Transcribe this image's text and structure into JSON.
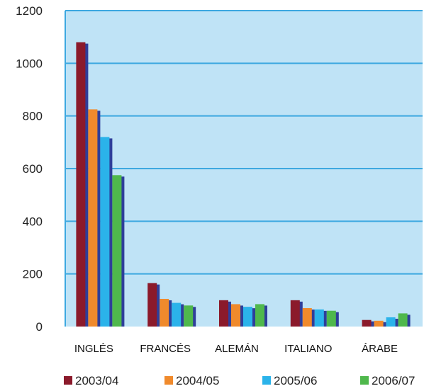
{
  "chart_data": {
    "type": "bar",
    "title": "",
    "xlabel": "",
    "ylabel": "",
    "ylim": [
      0,
      1200
    ],
    "yticks": [
      0,
      200,
      400,
      600,
      800,
      1000,
      1200
    ],
    "grid": true,
    "legend_position": "bottom",
    "categories": [
      "INGLÉS",
      "FRANCÉS",
      "ALEMÁN",
      "ITALIANO",
      "ÁRABE"
    ],
    "series": [
      {
        "name": "2003/04",
        "color": "#8B1A2B",
        "values": [
          1080,
          165,
          100,
          100,
          25
        ]
      },
      {
        "name": "2004/05",
        "color": "#F08A2C",
        "values": [
          825,
          105,
          85,
          70,
          22
        ]
      },
      {
        "name": "2005/06",
        "color": "#2BB3EA",
        "values": [
          720,
          90,
          75,
          65,
          35
        ]
      },
      {
        "name": "2006/07",
        "color": "#4FB84C",
        "values": [
          575,
          80,
          85,
          60,
          50
        ]
      }
    ],
    "side_color": "#2E3E9A",
    "plot_background": "#BFE3F6",
    "grid_color": "#3DA8E0"
  }
}
